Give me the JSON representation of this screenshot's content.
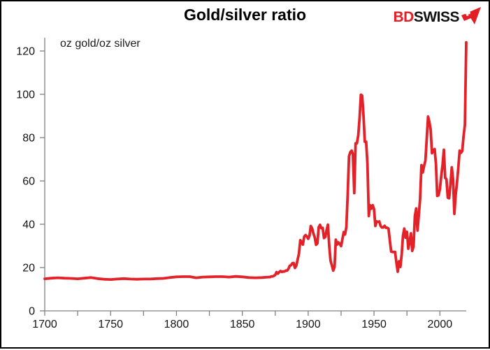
{
  "header": {
    "title": "Gold/silver ratio",
    "logo": {
      "bd": "BD",
      "swiss": "SWISS",
      "bd_color": "#e31e24",
      "swiss_color": "#121212",
      "arrow_color": "#e31e24"
    }
  },
  "chart_data": {
    "type": "line",
    "title": "Gold/silver ratio",
    "units_label": "oz gold/oz silver",
    "series_name": "gold/silver ratio (oz gold per oz silver)",
    "line_color": "#e32128",
    "axis_color": "#808080",
    "label_color": "#141414",
    "grid": false,
    "legend_position": "none",
    "xlim": [
      1700,
      2020
    ],
    "ylim": [
      0,
      127
    ],
    "x_major_ticks": [
      1700,
      1750,
      1800,
      1850,
      1900,
      1950,
      2000
    ],
    "x_minor_tick_step": 25,
    "y_ticks": [
      0,
      20,
      40,
      60,
      80,
      100,
      120
    ],
    "points": [
      [
        1700,
        14.8
      ],
      [
        1705,
        15.1
      ],
      [
        1710,
        15.3
      ],
      [
        1715,
        15.1
      ],
      [
        1720,
        15.0
      ],
      [
        1725,
        14.8
      ],
      [
        1730,
        15.1
      ],
      [
        1735,
        15.4
      ],
      [
        1740,
        14.9
      ],
      [
        1745,
        14.6
      ],
      [
        1750,
        14.5
      ],
      [
        1755,
        14.7
      ],
      [
        1760,
        14.9
      ],
      [
        1765,
        14.7
      ],
      [
        1770,
        14.6
      ],
      [
        1775,
        14.7
      ],
      [
        1780,
        14.7
      ],
      [
        1785,
        14.9
      ],
      [
        1790,
        15.0
      ],
      [
        1795,
        15.4
      ],
      [
        1800,
        15.7
      ],
      [
        1805,
        15.8
      ],
      [
        1810,
        15.8
      ],
      [
        1815,
        15.3
      ],
      [
        1820,
        15.6
      ],
      [
        1825,
        15.7
      ],
      [
        1830,
        15.8
      ],
      [
        1835,
        15.8
      ],
      [
        1840,
        15.6
      ],
      [
        1845,
        15.9
      ],
      [
        1850,
        15.7
      ],
      [
        1855,
        15.4
      ],
      [
        1860,
        15.3
      ],
      [
        1865,
        15.4
      ],
      [
        1870,
        15.6
      ],
      [
        1871,
        15.6
      ],
      [
        1872,
        15.9
      ],
      [
        1873,
        15.9
      ],
      [
        1874,
        16.2
      ],
      [
        1875,
        16.6
      ],
      [
        1876,
        17.9
      ],
      [
        1877,
        17.2
      ],
      [
        1878,
        17.9
      ],
      [
        1879,
        18.4
      ],
      [
        1880,
        18.0
      ],
      [
        1881,
        18.2
      ],
      [
        1882,
        18.2
      ],
      [
        1883,
        18.6
      ],
      [
        1884,
        18.6
      ],
      [
        1885,
        19.4
      ],
      [
        1886,
        20.8
      ],
      [
        1887,
        21.1
      ],
      [
        1888,
        22.0
      ],
      [
        1889,
        22.1
      ],
      [
        1890,
        19.8
      ],
      [
        1891,
        20.9
      ],
      [
        1892,
        23.7
      ],
      [
        1893,
        26.5
      ],
      [
        1894,
        32.6
      ],
      [
        1895,
        31.6
      ],
      [
        1896,
        30.6
      ],
      [
        1897,
        34.3
      ],
      [
        1898,
        35.0
      ],
      [
        1899,
        34.4
      ],
      [
        1900,
        33.3
      ],
      [
        1901,
        34.7
      ],
      [
        1902,
        39.2
      ],
      [
        1903,
        38.1
      ],
      [
        1904,
        35.7
      ],
      [
        1905,
        33.9
      ],
      [
        1906,
        30.5
      ],
      [
        1907,
        31.2
      ],
      [
        1908,
        38.6
      ],
      [
        1909,
        39.7
      ],
      [
        1910,
        38.2
      ],
      [
        1911,
        38.3
      ],
      [
        1912,
        33.6
      ],
      [
        1913,
        34.2
      ],
      [
        1914,
        37.4
      ],
      [
        1915,
        39.8
      ],
      [
        1916,
        30.1
      ],
      [
        1917,
        23.1
      ],
      [
        1918,
        21.0
      ],
      [
        1919,
        18.6
      ],
      [
        1920,
        20.3
      ],
      [
        1921,
        32.9
      ],
      [
        1922,
        30.6
      ],
      [
        1923,
        31.6
      ],
      [
        1924,
        30.9
      ],
      [
        1925,
        29.9
      ],
      [
        1926,
        33.2
      ],
      [
        1927,
        36.4
      ],
      [
        1928,
        35.3
      ],
      [
        1929,
        38.7
      ],
      [
        1930,
        53.6
      ],
      [
        1931,
        71.4
      ],
      [
        1932,
        73.3
      ],
      [
        1933,
        74.0
      ],
      [
        1934,
        72.3
      ],
      [
        1935,
        54.4
      ],
      [
        1936,
        77.4
      ],
      [
        1937,
        77.4
      ],
      [
        1938,
        81.0
      ],
      [
        1939,
        89.0
      ],
      [
        1940,
        99.8
      ],
      [
        1941,
        99.4
      ],
      [
        1942,
        90.3
      ],
      [
        1943,
        78.1
      ],
      [
        1944,
        78.1
      ],
      [
        1945,
        67.7
      ],
      [
        1946,
        43.8
      ],
      [
        1947,
        48.8
      ],
      [
        1948,
        47.2
      ],
      [
        1949,
        48.8
      ],
      [
        1950,
        47.0
      ],
      [
        1951,
        39.2
      ],
      [
        1952,
        41.3
      ],
      [
        1953,
        41.1
      ],
      [
        1954,
        41.3
      ],
      [
        1955,
        39.2
      ],
      [
        1956,
        38.5
      ],
      [
        1957,
        38.5
      ],
      [
        1958,
        39.3
      ],
      [
        1959,
        38.4
      ],
      [
        1960,
        38.4
      ],
      [
        1961,
        38.0
      ],
      [
        1962,
        32.5
      ],
      [
        1963,
        27.4
      ],
      [
        1964,
        27.2
      ],
      [
        1965,
        27.2
      ],
      [
        1966,
        27.2
      ],
      [
        1967,
        22.4
      ],
      [
        1968,
        18.1
      ],
      [
        1969,
        22.9
      ],
      [
        1970,
        20.3
      ],
      [
        1971,
        26.2
      ],
      [
        1972,
        34.8
      ],
      [
        1973,
        38.0
      ],
      [
        1974,
        33.8
      ],
      [
        1975,
        36.5
      ],
      [
        1976,
        28.7
      ],
      [
        1977,
        32.0
      ],
      [
        1978,
        35.8
      ],
      [
        1979,
        27.7
      ],
      [
        1980,
        29.7
      ],
      [
        1981,
        43.7
      ],
      [
        1982,
        47.3
      ],
      [
        1983,
        37.1
      ],
      [
        1984,
        44.4
      ],
      [
        1985,
        51.7
      ],
      [
        1986,
        67.3
      ],
      [
        1987,
        63.9
      ],
      [
        1988,
        66.9
      ],
      [
        1989,
        69.4
      ],
      [
        1990,
        79.6
      ],
      [
        1991,
        89.7
      ],
      [
        1992,
        87.3
      ],
      [
        1993,
        83.7
      ],
      [
        1994,
        72.8
      ],
      [
        1995,
        74.0
      ],
      [
        1996,
        74.7
      ],
      [
        1997,
        67.7
      ],
      [
        1998,
        53.1
      ],
      [
        1999,
        53.4
      ],
      [
        2000,
        56.3
      ],
      [
        2001,
        62.1
      ],
      [
        2002,
        67.4
      ],
      [
        2003,
        74.4
      ],
      [
        2004,
        61.4
      ],
      [
        2005,
        60.8
      ],
      [
        2006,
        52.3
      ],
      [
        2007,
        52.0
      ],
      [
        2008,
        58.2
      ],
      [
        2009,
        66.3
      ],
      [
        2010,
        60.7
      ],
      [
        2011,
        44.8
      ],
      [
        2012,
        53.6
      ],
      [
        2013,
        59.3
      ],
      [
        2014,
        66.3
      ],
      [
        2015,
        74.0
      ],
      [
        2016,
        73.0
      ],
      [
        2017,
        73.8
      ],
      [
        2018,
        80.7
      ],
      [
        2019,
        85.9
      ],
      [
        2020,
        124.0
      ]
    ]
  }
}
